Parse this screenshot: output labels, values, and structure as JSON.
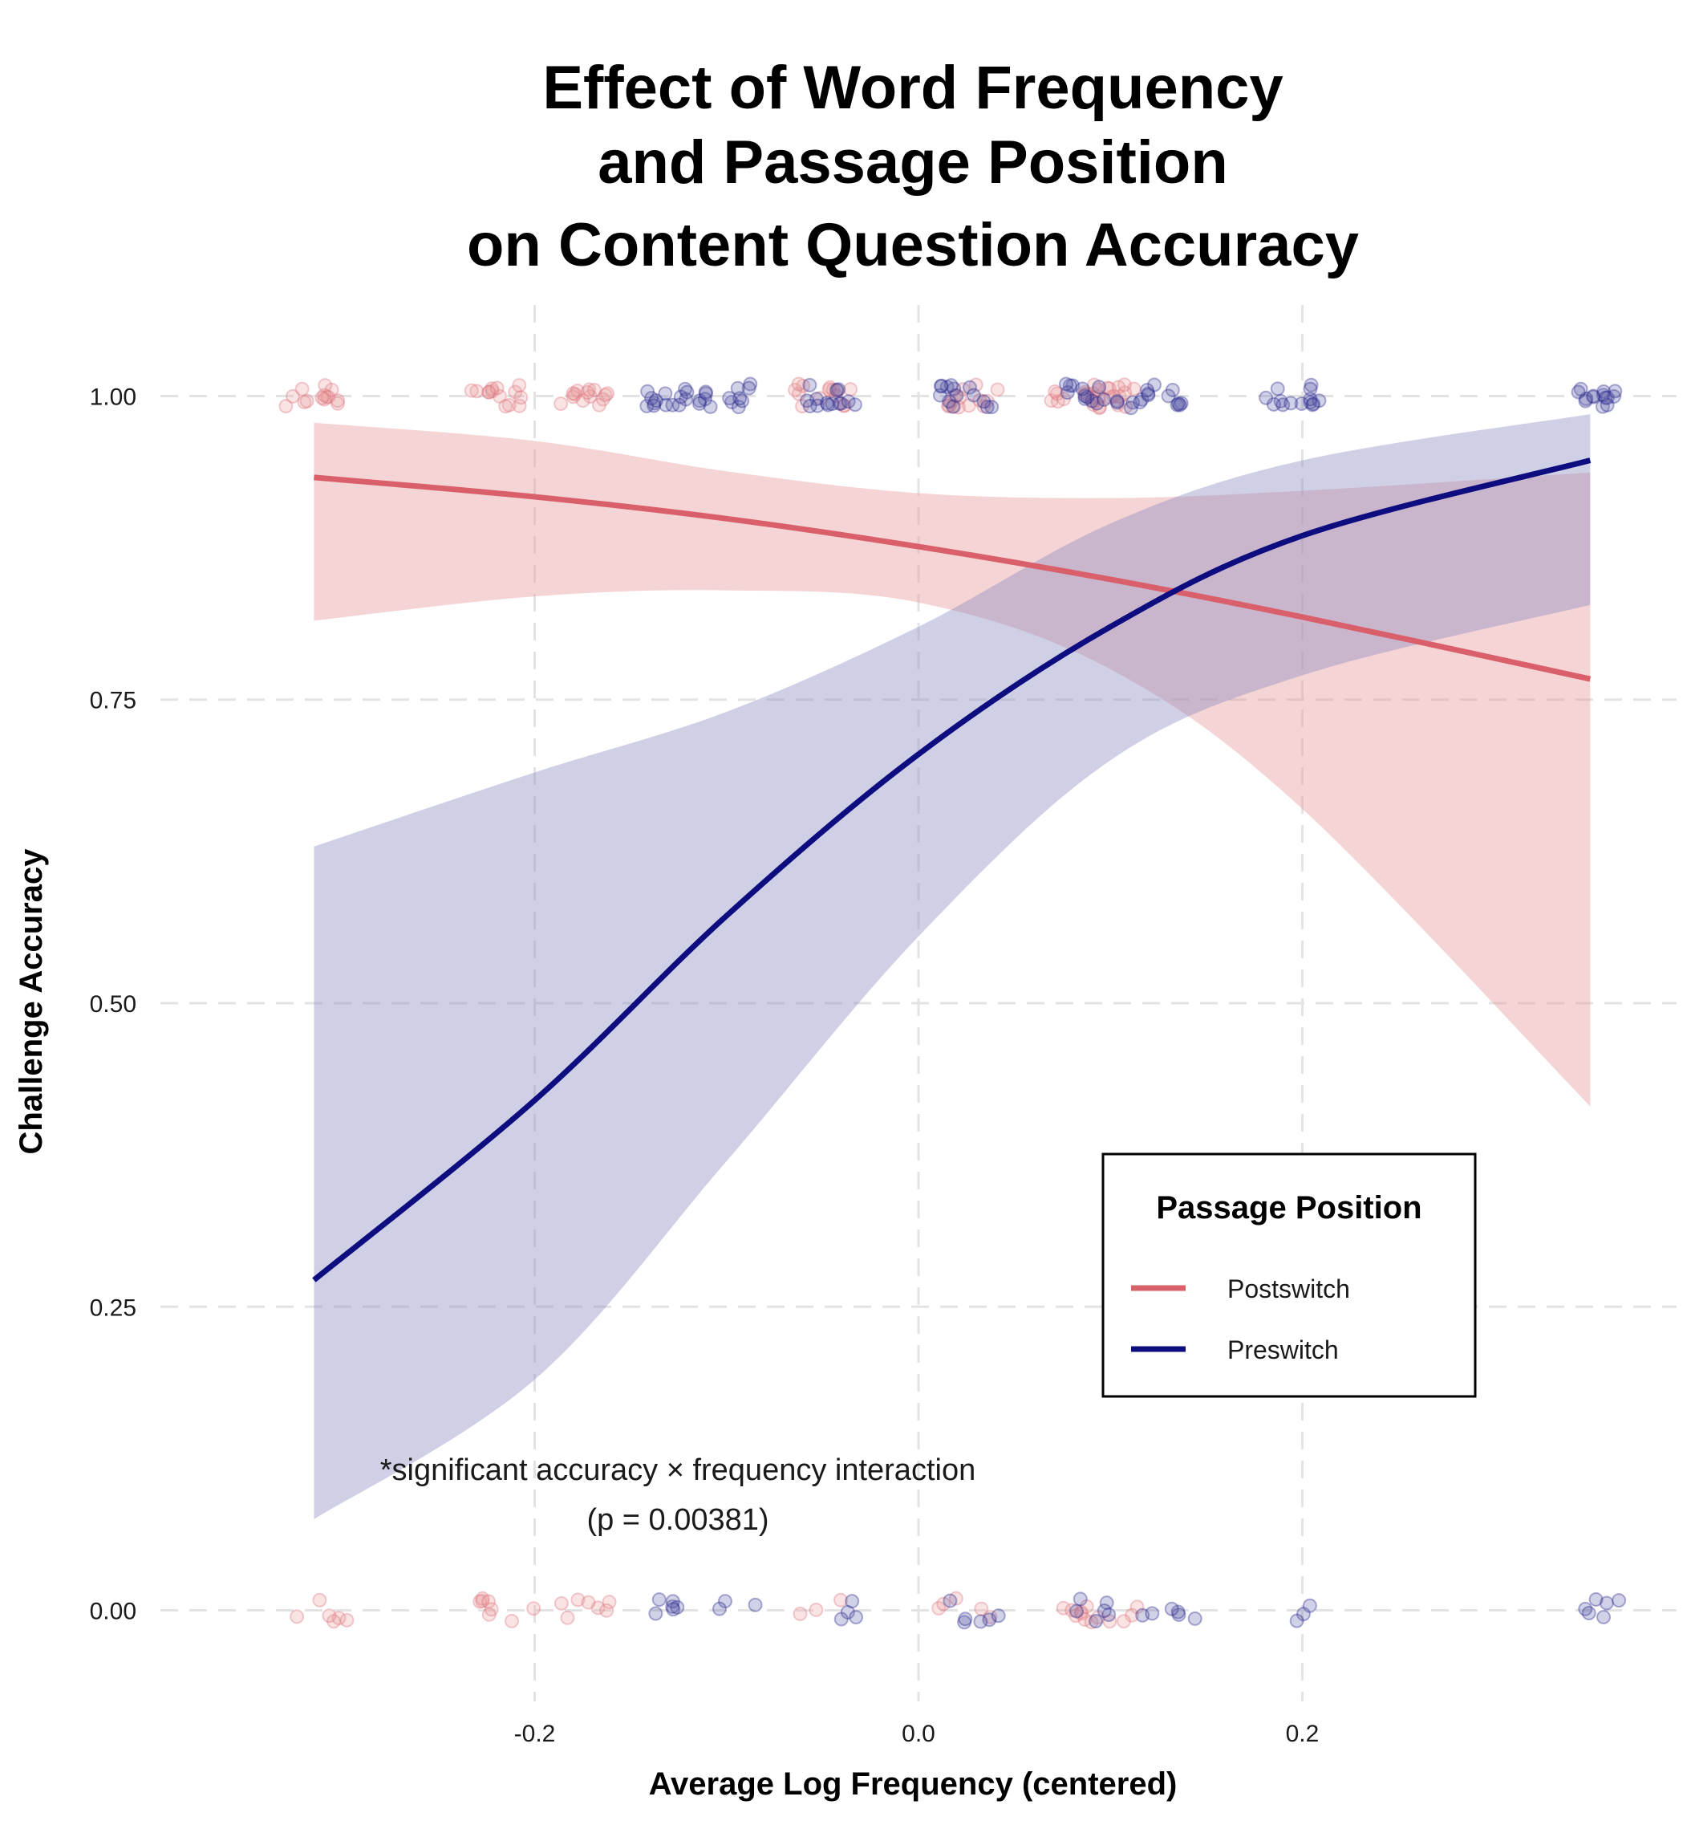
{
  "chart_data": {
    "type": "line",
    "title_lines": [
      "Effect of Word Frequency",
      "and Passage Position",
      "on Content Question Accuracy"
    ],
    "xlabel": "Average Log Frequency (centered)",
    "ylabel": "Challenge Accuracy",
    "xlim": [
      -0.395,
      0.395
    ],
    "ylim": [
      -0.075,
      1.075
    ],
    "x_ticks": [
      {
        "value": -0.2,
        "label": "-0.2"
      },
      {
        "value": 0.0,
        "label": "0.0"
      },
      {
        "value": 0.2,
        "label": "0.2"
      }
    ],
    "y_ticks": [
      {
        "value": 0.0,
        "label": "0.00"
      },
      {
        "value": 0.25,
        "label": "0.25"
      },
      {
        "value": 0.5,
        "label": "0.50"
      },
      {
        "value": 0.75,
        "label": "0.75"
      },
      {
        "value": 1.0,
        "label": "1.00"
      }
    ],
    "grid": true,
    "legend": {
      "title": "Passage Position",
      "placement": "bottom-right",
      "entries": [
        "Postswitch",
        "Preswitch"
      ]
    },
    "series": [
      {
        "name": "Postswitch",
        "color": "#d95f6a",
        "band_color": "#e8999c",
        "x": [
          -0.315,
          -0.2,
          -0.1,
          0.0,
          0.1,
          0.2,
          0.35
        ],
        "y": [
          0.933,
          0.917,
          0.899,
          0.876,
          0.849,
          0.818,
          0.767
        ],
        "lower": [
          0.815,
          0.835,
          0.84,
          0.83,
          0.775,
          0.66,
          0.415
        ],
        "upper": [
          0.978,
          0.963,
          0.938,
          0.92,
          0.916,
          0.922,
          0.937
        ]
      },
      {
        "name": "Preswitch",
        "color": "#0d0d80",
        "band_color": "#8c8cc4",
        "x": [
          -0.315,
          -0.2,
          -0.1,
          0.0,
          0.1,
          0.2,
          0.35
        ],
        "y": [
          0.272,
          0.42,
          0.572,
          0.705,
          0.81,
          0.885,
          0.947
        ],
        "lower": [
          0.075,
          0.19,
          0.37,
          0.555,
          0.7,
          0.77,
          0.828
        ],
        "upper": [
          0.629,
          0.69,
          0.74,
          0.81,
          0.895,
          0.947,
          0.985
        ]
      }
    ],
    "points": {
      "Postswitch": {
        "at_one": [
          -0.315,
          -0.22,
          -0.175,
          -0.05,
          0.03,
          0.08,
          0.1
        ],
        "at_zero": [
          -0.31,
          -0.215,
          -0.175,
          -0.055,
          0.025,
          0.08,
          0.1
        ]
      },
      "Preswitch": {
        "at_one": [
          -0.13,
          -0.1,
          -0.045,
          0.025,
          0.09,
          0.125,
          0.195,
          0.355
        ],
        "at_zero": [
          -0.125,
          -0.095,
          -0.04,
          0.03,
          0.09,
          0.13,
          0.19,
          0.355
        ]
      }
    },
    "annotation": [
      "*significant accuracy × frequency interaction",
      "(p = 0.00381)"
    ]
  }
}
